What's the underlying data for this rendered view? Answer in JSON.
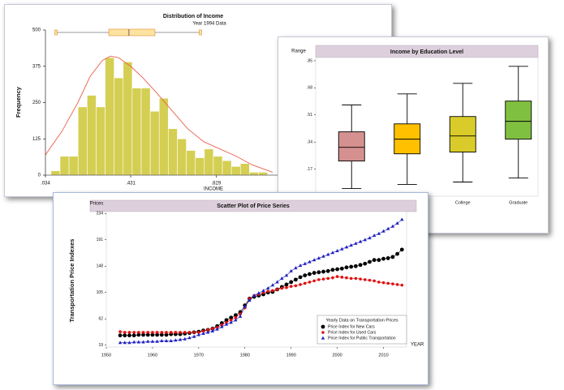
{
  "chart_data": [
    {
      "type": "histogram",
      "title": "Distribution of Income",
      "subtitle": "Year 1994 Data",
      "xlabel": "INCOME",
      "ylabel": "Frequency",
      "bins": [
        0.06,
        0.102,
        0.144,
        0.186,
        0.228,
        0.27,
        0.312,
        0.354,
        0.396,
        0.438,
        0.48,
        0.522,
        0.564,
        0.606,
        0.648,
        0.69,
        0.732,
        0.774,
        0.816,
        0.858,
        0.9,
        0.942,
        0.984,
        1.026,
        1.068
      ],
      "counts": [
        15,
        65,
        65,
        235,
        275,
        235,
        405,
        335,
        390,
        300,
        300,
        220,
        265,
        160,
        125,
        85,
        60,
        90,
        65,
        50,
        30,
        40,
        10,
        10
      ],
      "color": "#d4cf52",
      "density": {
        "color": "#e8604c",
        "x": [
          0.034,
          0.11,
          0.185,
          0.242,
          0.299,
          0.337,
          0.374,
          0.431,
          0.488,
          0.544,
          0.62,
          0.696,
          0.771,
          0.847,
          0.923,
          0.998,
          1.092
        ],
        "values": [
          70,
          150,
          250,
          340,
          395,
          410,
          405,
          375,
          335,
          290,
          225,
          160,
          115,
          90,
          65,
          35,
          10
        ]
      },
      "boxplot": {
        "min": 0.083,
        "q1": 0.329,
        "median": 0.423,
        "q3": 0.544,
        "max": 0.756,
        "color": "#fde3a0"
      },
      "xlim": [
        0.034,
        1.3
      ],
      "xticks": [
        {
          "value": 0.034,
          "label": ".034"
        },
        {
          "value": 0.431,
          "label": ".431"
        },
        {
          "value": 0.829,
          "label": ".829"
        }
      ],
      "ylim": [
        0,
        500
      ],
      "yticks": [
        0,
        125,
        250,
        375,
        500
      ]
    },
    {
      "type": "boxplot",
      "title": "Income by Education Level",
      "ylabel": "Range",
      "categories": [
        null,
        null,
        "College",
        "Graduate"
      ],
      "boxes": [
        {
          "min": 0.048,
          "q1": 0.221,
          "median": 0.307,
          "q3": 0.404,
          "max": 0.573
        },
        {
          "min": 0.074,
          "q1": 0.266,
          "median": 0.358,
          "q3": 0.454,
          "max": 0.642
        },
        {
          "min": 0.089,
          "q1": 0.277,
          "median": 0.378,
          "q3": 0.5,
          "max": 0.708
        },
        {
          "min": 0.114,
          "q1": 0.358,
          "median": 0.47,
          "q3": 0.597,
          "max": 0.815
        }
      ],
      "colors": [
        "#d4918f",
        "#ffc000",
        "#d9cc2a",
        "#80c040"
      ],
      "ylim": [
        0,
        0.87
      ],
      "yticks": [
        {
          "value": 0.17,
          "label": ".17"
        },
        {
          "value": 0.34,
          "label": ".34"
        },
        {
          "value": 0.51,
          "label": ".51"
        },
        {
          "value": 0.68,
          "label": ".68"
        },
        {
          "value": 0.85,
          "label": ".85"
        }
      ]
    },
    {
      "type": "scatter",
      "title": "Scatter Plot of Price Series",
      "ylabel": "Prices",
      "ylabel2": "Transportation Price Indexes",
      "xlabel": "YEAR",
      "legend_title": "Yearly Data on Transportation Prices",
      "x": [
        1953,
        1954,
        1955,
        1956,
        1957,
        1958,
        1959,
        1960,
        1961,
        1962,
        1963,
        1964,
        1965,
        1966,
        1967,
        1968,
        1969,
        1970,
        1971,
        1972,
        1973,
        1974,
        1975,
        1976,
        1977,
        1978,
        1979,
        1980,
        1981,
        1982,
        1983,
        1984,
        1985,
        1986,
        1987,
        1988,
        1989,
        1990,
        1991,
        1992,
        1993,
        1994,
        1995,
        1996,
        1997,
        1998,
        1999,
        2000,
        2001,
        2002,
        2003,
        2004,
        2005,
        2006,
        2007,
        2008,
        2009,
        2010,
        2011,
        2012,
        2013,
        2014
      ],
      "series": [
        {
          "name": "Price Index for New Cars",
          "color": "#000000",
          "marker": "circle",
          "values": [
            35,
            35,
            35,
            35,
            36,
            36,
            36,
            36,
            36,
            36,
            36,
            37,
            37,
            37,
            38,
            39,
            40,
            41,
            43,
            44,
            46,
            50,
            55,
            60,
            64,
            68,
            73,
            84,
            95,
            98,
            100,
            102,
            105,
            106,
            110,
            114,
            118,
            122,
            126,
            130,
            133,
            135,
            137,
            138,
            139,
            140,
            142,
            143,
            144,
            146,
            147,
            148,
            150,
            152,
            155,
            158,
            158,
            160,
            161,
            163,
            168,
            175
          ]
        },
        {
          "name": "Price Index for Used Cars",
          "color": "#e01010",
          "marker": "circle",
          "values": [
            41,
            40,
            40,
            40,
            40,
            40,
            40,
            40,
            40,
            40,
            40,
            40,
            40,
            40,
            40,
            40,
            40,
            40,
            42,
            44,
            46,
            48,
            52,
            56,
            60,
            64,
            70,
            80,
            95,
            100,
            102,
            105,
            107,
            108,
            110,
            112,
            113,
            115,
            116,
            118,
            120,
            122,
            124,
            126,
            127,
            128,
            129,
            131,
            130,
            129,
            128,
            128,
            127,
            126,
            125,
            124,
            122,
            121,
            120,
            119,
            118,
            117
          ]
        },
        {
          "name": "Price Index for Public Transportation",
          "color": "#2020c0",
          "marker": "triangle",
          "values": [
            23,
            23,
            23,
            24,
            24,
            24,
            25,
            25,
            25,
            26,
            26,
            26,
            27,
            28,
            29,
            31,
            33,
            36,
            38,
            40,
            42,
            45,
            49,
            53,
            56,
            60,
            66,
            82,
            92,
            100,
            104,
            108,
            112,
            117,
            122,
            128,
            133,
            140,
            145,
            149,
            152,
            155,
            158,
            161,
            164,
            167,
            170,
            173,
            176,
            179,
            182,
            185,
            188,
            191,
            194,
            198,
            201,
            205,
            209,
            213,
            218,
            224
          ]
        }
      ],
      "xlim": [
        1950,
        2015
      ],
      "xticks": [
        1950,
        1960,
        1970,
        1980,
        1990,
        2000,
        2010
      ],
      "ylim": [
        16,
        237
      ],
      "yticks": [
        19,
        62,
        105,
        148,
        191,
        234
      ]
    }
  ]
}
